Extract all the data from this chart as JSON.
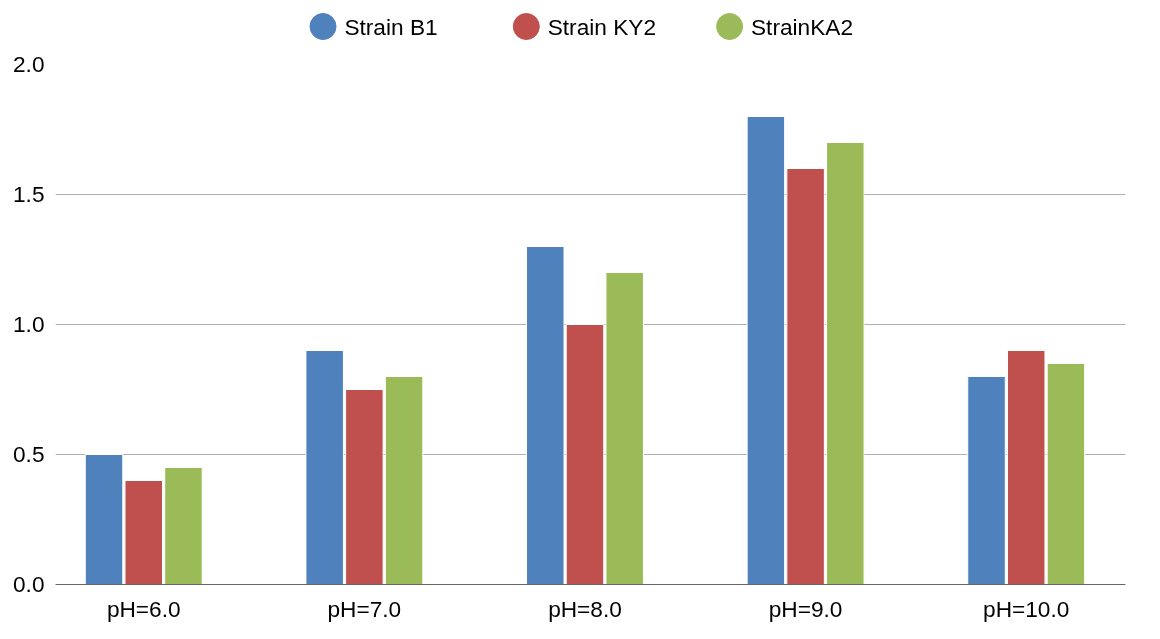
{
  "chart_data": {
    "type": "bar",
    "categories": [
      "pH=6.0",
      "pH=7.0",
      "pH=8.0",
      "pH=9.0",
      "pH=10.0"
    ],
    "series": [
      {
        "name": "Strain B1",
        "color": "#4f81bd",
        "values": [
          0.5,
          0.9,
          1.3,
          1.8,
          0.8
        ]
      },
      {
        "name": "Strain KY2",
        "color": "#c0504d",
        "values": [
          0.4,
          0.75,
          1.0,
          1.6,
          0.9
        ]
      },
      {
        "name": "StrainKA2",
        "color": "#9bbb59",
        "values": [
          0.45,
          0.8,
          1.2,
          1.7,
          0.85
        ]
      }
    ],
    "ylim": [
      0,
      2.0
    ],
    "yticks": [
      {
        "value": 0,
        "label": "0.0"
      },
      {
        "value": 0.5,
        "label": "0.5"
      },
      {
        "value": 1.0,
        "label": "1.0"
      },
      {
        "value": 1.5,
        "label": "1.5"
      },
      {
        "value": 2.0,
        "label": "2.0"
      }
    ],
    "grid": "y",
    "legend": "top"
  }
}
